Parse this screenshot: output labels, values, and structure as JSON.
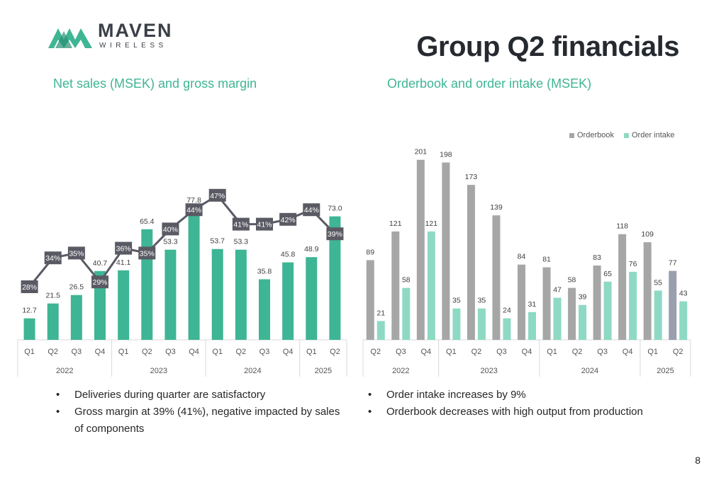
{
  "brand": {
    "name": "MAVEN",
    "tagline": "WIRELESS"
  },
  "title": "Group Q2 financials",
  "page_number": "8",
  "colors": {
    "accent": "#3eb594",
    "gray": "#a6a6a6",
    "light_green": "#8ed9c4",
    "dark": "#5a5a64"
  },
  "left": {
    "subtitle": "Net sales (MSEK) and gross margin",
    "bullets": [
      "Deliveries during quarter are satisfactory",
      "Gross margin at 39% (41%), negative impacted by sales of components"
    ]
  },
  "right": {
    "subtitle": "Orderbook and order intake (MSEK)",
    "bullets": [
      "Order intake increases by 9%",
      "Orderbook decreases with high output from production"
    ]
  },
  "chart_data": [
    {
      "type": "bar",
      "title": "Net sales (MSEK) and gross margin",
      "categories": [
        "Q1",
        "Q2",
        "Q3",
        "Q4",
        "Q1",
        "Q2",
        "Q3",
        "Q4",
        "Q1",
        "Q2",
        "Q3",
        "Q4",
        "Q1",
        "Q2"
      ],
      "groups": [
        {
          "label": "2022",
          "count": 4
        },
        {
          "label": "2023",
          "count": 4
        },
        {
          "label": "2024",
          "count": 4
        },
        {
          "label": "2025",
          "count": 2
        }
      ],
      "series": [
        {
          "name": "Net sales",
          "type": "bar",
          "values": [
            12.7,
            21.5,
            26.5,
            40.7,
            41.1,
            65.4,
            53.3,
            77.8,
            53.7,
            53.3,
            35.8,
            45.8,
            48.9,
            73.0
          ],
          "labels": [
            "12.7",
            "21.5",
            "26.5",
            "40.7",
            "41.1",
            "65.4",
            "53.3",
            "77.8",
            "53.7",
            "53.3",
            "35.8",
            "45.8",
            "48.9",
            "73.0"
          ]
        },
        {
          "name": "Gross margin",
          "type": "line",
          "values": [
            28,
            34,
            35,
            29,
            36,
            35,
            40,
            44,
            47,
            41,
            41,
            42,
            44,
            39
          ],
          "labels": [
            "28%",
            "34%",
            "35%",
            "29%",
            "36%",
            "35%",
            "40%",
            "44%",
            "47%",
            "41%",
            "41%",
            "42%",
            "44%",
            "39%"
          ]
        }
      ],
      "ylim": [
        0,
        90
      ],
      "grid": false
    },
    {
      "type": "bar",
      "title": "Orderbook and order intake (MSEK)",
      "categories": [
        "Q2",
        "Q3",
        "Q4",
        "Q1",
        "Q2",
        "Q3",
        "Q4",
        "Q1",
        "Q2",
        "Q3",
        "Q4",
        "Q1",
        "Q2"
      ],
      "groups": [
        {
          "label": "2022",
          "count": 3
        },
        {
          "label": "2023",
          "count": 4
        },
        {
          "label": "2024",
          "count": 4
        },
        {
          "label": "2025",
          "count": 2
        }
      ],
      "series": [
        {
          "name": "Orderbook",
          "values": [
            89,
            121,
            201,
            198,
            173,
            139,
            84,
            81,
            58,
            83,
            118,
            109,
            77
          ]
        },
        {
          "name": "Order intake",
          "values": [
            21,
            58,
            121,
            35,
            35,
            24,
            31,
            47,
            39,
            65,
            76,
            55,
            43
          ]
        }
      ],
      "legend": "top-right",
      "ylim": [
        0,
        215
      ],
      "grid": false
    }
  ]
}
